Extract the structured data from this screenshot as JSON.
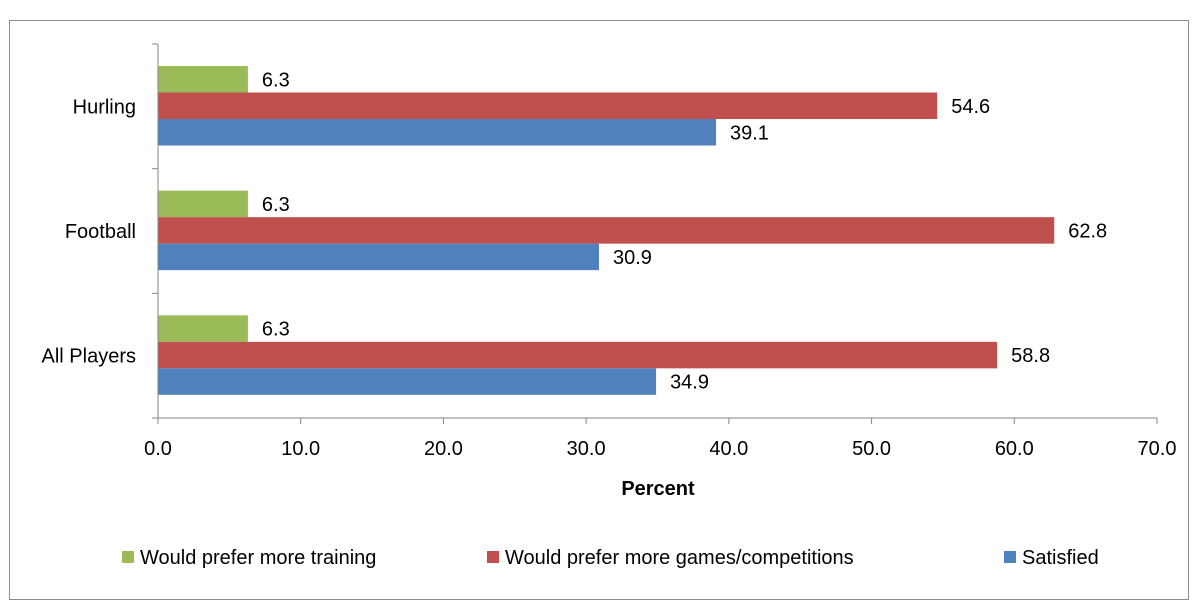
{
  "chart_data": {
    "type": "bar",
    "orientation": "horizontal",
    "categories": [
      "Hurling",
      "Football",
      "All Players"
    ],
    "series": [
      {
        "name": "Would prefer more training",
        "values": [
          6.3,
          6.3,
          6.3
        ],
        "color": "#9bbb59"
      },
      {
        "name": "Would prefer more games/competitions",
        "values": [
          54.6,
          62.8,
          58.8
        ],
        "color": "#c0504d"
      },
      {
        "name": "Satisfied",
        "values": [
          39.1,
          30.9,
          34.9
        ],
        "color": "#4f81bd"
      }
    ],
    "title": "",
    "xlabel": "Percent",
    "ylabel": "",
    "xlim": [
      0,
      70
    ],
    "x_ticks": [
      "0.0",
      "10.0",
      "20.0",
      "30.0",
      "40.0",
      "50.0",
      "60.0",
      "70.0"
    ],
    "grid": false,
    "legend_position": "bottom",
    "data_labels": true
  }
}
